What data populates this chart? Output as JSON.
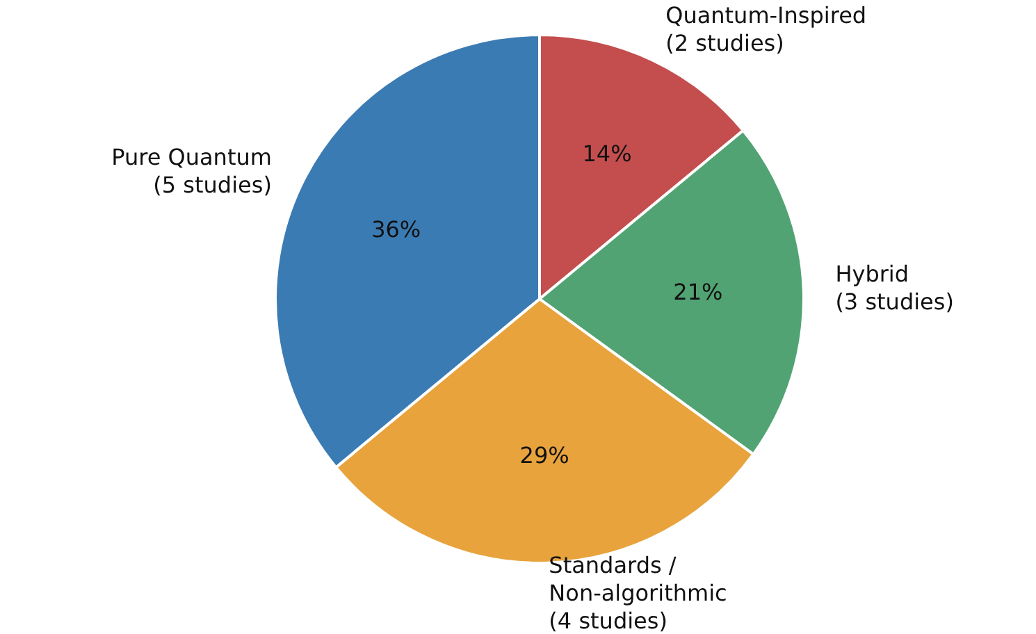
{
  "chart_data": {
    "type": "pie",
    "categories": [
      "Quantum-Inspired\n(2 studies)",
      "Hybrid\n(3 studies)",
      "Standards /\nNon-algorithmic\n(4 studies)",
      "Pure Quantum\n(5 studies)"
    ],
    "values": [
      14,
      21,
      29,
      36
    ],
    "value_labels": [
      "14%",
      "21%",
      "29%",
      "36%"
    ],
    "colors": [
      "#c44e4e",
      "#52a373",
      "#e8a33d",
      "#3b7bb3"
    ],
    "legend": false
  }
}
